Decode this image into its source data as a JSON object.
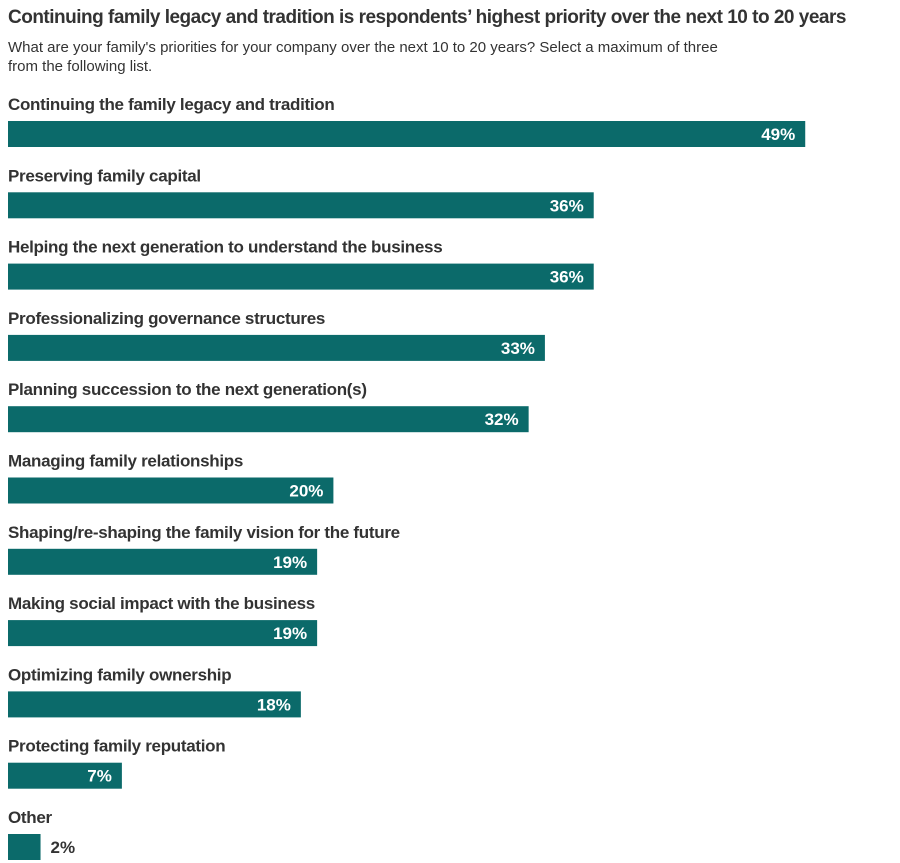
{
  "chart_data": {
    "type": "bar",
    "orientation": "horizontal",
    "title": "Continuing family legacy and tradition is respondents’ highest priority over the next 10 to 20 years",
    "subtitle": "What are your family's priorities for your company over the next 10 to 20 years? Select a maximum of three from the following list.",
    "categories": [
      "Continuing the family legacy and tradition",
      "Preserving family capital",
      "Helping the next generation to understand the business",
      "Professionalizing governance structures",
      "Planning succession to the next generation(s)",
      "Managing family relationships",
      "Shaping/re-shaping the family vision for the future",
      "Making social impact with the business",
      "Optimizing family ownership",
      "Protecting family reputation",
      "Other"
    ],
    "values": [
      49,
      36,
      36,
      33,
      32,
      20,
      19,
      19,
      18,
      7,
      2
    ],
    "value_labels": [
      "49%",
      "36%",
      "36%",
      "33%",
      "32%",
      "20%",
      "19%",
      "19%",
      "18%",
      "7%",
      "2%"
    ],
    "unit": "%",
    "bar_color": "#0b6a6a",
    "grid": false,
    "legend": "none"
  }
}
